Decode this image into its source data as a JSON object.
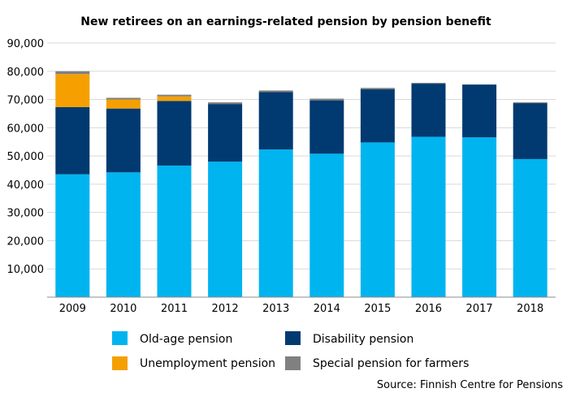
{
  "chart_data": {
    "type": "bar",
    "stacked": true,
    "title": "New retirees on an earnings-related pension by pension benefit",
    "categories": [
      "2009",
      "2010",
      "2011",
      "2012",
      "2013",
      "2014",
      "2015",
      "2016",
      "2017",
      "2018"
    ],
    "series": [
      {
        "name": "Old-age pension",
        "color": "#00b4f0",
        "values": [
          43500,
          44200,
          46600,
          48000,
          52300,
          50800,
          54800,
          56800,
          56600,
          48900
        ]
      },
      {
        "name": "Disability pension",
        "color": "#003a70",
        "values": [
          23800,
          22600,
          22900,
          20400,
          20300,
          18900,
          18800,
          18800,
          18700,
          19800
        ]
      },
      {
        "name": "Unemployment pension",
        "color": "#f5a000",
        "values": [
          11700,
          3200,
          1600,
          0,
          0,
          0,
          0,
          0,
          0,
          0
        ]
      },
      {
        "name": "Special pension for farmers",
        "color": "#808080",
        "values": [
          1000,
          600,
          600,
          600,
          600,
          600,
          500,
          300,
          0,
          300
        ]
      }
    ],
    "ylim": [
      0,
      90000
    ],
    "yticks": [
      "90,000",
      "80,000",
      "70,000",
      "60,000",
      "50,000",
      "40,000",
      "30,000",
      "20,000",
      "10,000"
    ],
    "grid": true,
    "legend_position": "bottom",
    "source": "Source: Finnish Centre for Pensions"
  }
}
